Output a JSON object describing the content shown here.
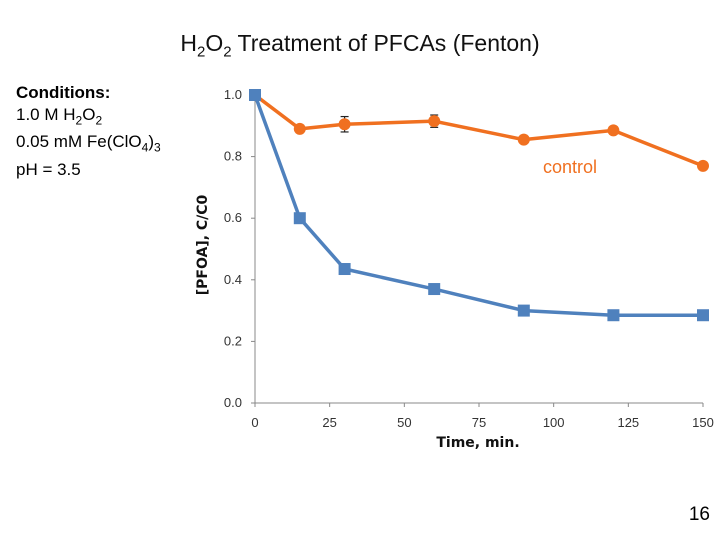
{
  "slide": {
    "title_pre": "H",
    "title_sub1": "2",
    "title_mid": "O",
    "title_sub2": "2",
    "title_post": " Treatment of PFCAs (Fenton)",
    "page_number": "16"
  },
  "conditions": {
    "heading": "Conditions:",
    "line1_pre": "1.0 M H",
    "line1_sub1": "2",
    "line1_mid": "O",
    "line1_sub2": "2",
    "line2_pre": "0.05 mM Fe(ClO",
    "line2_sub1": "4",
    "line2_mid": ")",
    "line2_sub2": "3",
    "line3": "pH = 3.5"
  },
  "colors": {
    "control": "#F07020",
    "treatment": "#4F81BD",
    "axis": "#888888"
  },
  "chart_data": {
    "type": "line",
    "xlabel": "Time, min.",
    "ylabel": "[PFOA], C/C0",
    "xlim": [
      0,
      150
    ],
    "ylim": [
      0,
      1.0
    ],
    "x_ticks": [
      "0",
      "25",
      "50",
      "75",
      "100",
      "125",
      "150"
    ],
    "x_tick_values": [
      0,
      25,
      50,
      75,
      100,
      125,
      150
    ],
    "y_ticks": [
      "0.0",
      "0.2",
      "0.4",
      "0.6",
      "0.8",
      "1.0"
    ],
    "y_tick_values": [
      0.0,
      0.2,
      0.4,
      0.6,
      0.8,
      1.0
    ],
    "series": [
      {
        "name": "control",
        "marker": "circle",
        "x": [
          0,
          15,
          30,
          60,
          90,
          120,
          150
        ],
        "y": [
          1.0,
          0.89,
          0.905,
          0.915,
          0.855,
          0.885,
          0.77
        ],
        "err": [
          0,
          0,
          0.025,
          0.02,
          0,
          0,
          0
        ]
      },
      {
        "name": "",
        "marker": "square",
        "x": [
          0,
          15,
          30,
          60,
          90,
          120,
          150
        ],
        "y": [
          1.0,
          0.6,
          0.435,
          0.37,
          0.3,
          0.285,
          0.285
        ],
        "err": [
          0,
          0.015,
          0,
          0,
          0,
          0,
          0
        ]
      }
    ]
  }
}
